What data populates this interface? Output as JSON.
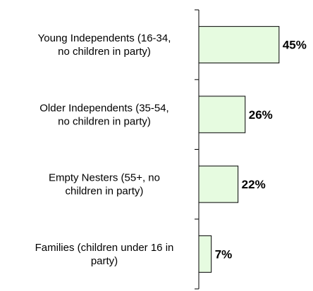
{
  "chart_data": {
    "type": "bar",
    "orientation": "horizontal",
    "categories": [
      [
        "Young Independents (16-34,",
        "no children in party)"
      ],
      [
        "Older Independents (35-54,",
        "no children in party)"
      ],
      [
        "Empty Nesters (55+, no",
        "children in party)"
      ],
      [
        "Families (children under 16 in",
        "party)"
      ]
    ],
    "values": [
      45,
      26,
      22,
      7
    ],
    "value_labels": [
      "45%",
      "26%",
      "22%",
      "7%"
    ],
    "xlim": [
      0,
      100
    ],
    "grid": false,
    "legend": "none",
    "title": "",
    "xlabel": "",
    "ylabel": "",
    "colors": {
      "bar_fill": "#E6FBE0",
      "bar_stroke": "#000000",
      "axis": "#000000"
    }
  }
}
